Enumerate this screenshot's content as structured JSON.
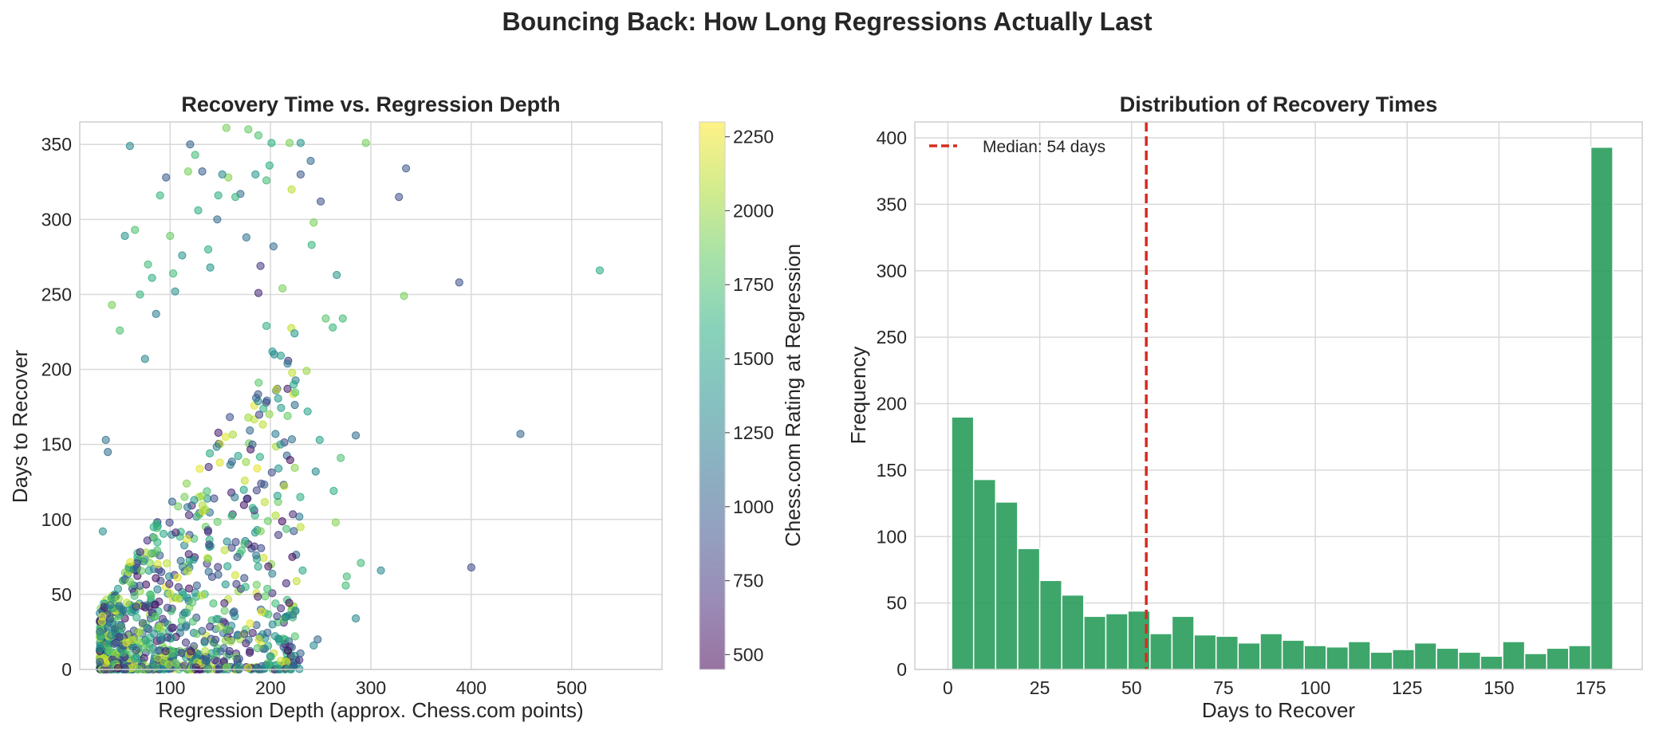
{
  "figure": {
    "title": "Bouncing Back: How Long Regressions Actually Last"
  },
  "chart_data": [
    {
      "type": "scatter",
      "title": "Recovery Time vs. Regression Depth",
      "xlabel": "Regression Depth (approx. Chess.com points)",
      "ylabel": "Days to Recover",
      "xlim": [
        10,
        590
      ],
      "ylim": [
        0,
        365
      ],
      "xticks": [
        100,
        200,
        300,
        400,
        500
      ],
      "yticks": [
        0,
        50,
        100,
        150,
        200,
        250,
        300,
        350
      ],
      "grid": true,
      "colorbar": {
        "label": "Chess.com Rating at Regression",
        "range": [
          450,
          2300
        ],
        "ticks": [
          500,
          750,
          1000,
          1250,
          1500,
          1750,
          2000,
          2250
        ],
        "colormap": "viridis"
      },
      "point_alpha": 0.55,
      "points": [
        [
          528,
          266,
          1550
        ],
        [
          449,
          157,
          1050
        ],
        [
          400,
          68,
          850
        ],
        [
          388,
          258,
          900
        ],
        [
          333,
          249,
          1900
        ],
        [
          335,
          334,
          950
        ],
        [
          328,
          315,
          900
        ],
        [
          310,
          66,
          1300
        ],
        [
          295,
          351,
          1900
        ],
        [
          290,
          71,
          1700
        ],
        [
          285,
          156,
          1100
        ],
        [
          285,
          34,
          1300
        ],
        [
          276,
          62,
          1700
        ],
        [
          275,
          56,
          1700
        ],
        [
          272,
          234,
          1700
        ],
        [
          270,
          141,
          1750
        ],
        [
          265,
          98,
          1950
        ],
        [
          266,
          263,
          1400
        ],
        [
          263,
          119,
          1600
        ],
        [
          262,
          228,
          1650
        ],
        [
          255,
          234,
          1800
        ],
        [
          253,
          367,
          950
        ],
        [
          250,
          312,
          900
        ],
        [
          249,
          153,
          1500
        ],
        [
          247,
          20,
          1050
        ],
        [
          243,
          16,
          1300
        ],
        [
          241,
          283,
          1650
        ],
        [
          243,
          298,
          1900
        ],
        [
          240,
          339,
          1100
        ],
        [
          245,
          132,
          1300
        ],
        [
          236,
          199,
          2000
        ],
        [
          237,
          172,
          1500
        ],
        [
          232,
          66,
          1550
        ],
        [
          230,
          330,
          950
        ],
        [
          230,
          351,
          1400
        ],
        [
          224,
          224,
          1400
        ],
        [
          221,
          320,
          2100
        ],
        [
          219,
          351,
          1900
        ],
        [
          218,
          36,
          1400
        ],
        [
          215,
          35,
          1300
        ],
        [
          212,
          254,
          1900
        ],
        [
          210,
          150,
          1400
        ],
        [
          208,
          134,
          1400
        ],
        [
          205,
          157,
          1200
        ],
        [
          205,
          44,
          1700
        ],
        [
          203,
          282,
          1100
        ],
        [
          202,
          30,
          1300
        ],
        [
          201,
          351,
          1600
        ],
        [
          199,
          336,
          1600
        ],
        [
          196,
          326,
          1700
        ],
        [
          196,
          229,
          1600
        ],
        [
          190,
          269,
          750
        ],
        [
          188,
          251,
          650
        ],
        [
          188,
          356,
          1750
        ],
        [
          185,
          330,
          1400
        ],
        [
          182,
          150,
          950
        ],
        [
          178,
          360,
          1850
        ],
        [
          176,
          288,
          1150
        ],
        [
          172,
          367,
          1250
        ],
        [
          170,
          317,
          1100
        ],
        [
          165,
          315,
          1650
        ],
        [
          158,
          328,
          1950
        ],
        [
          156,
          361,
          1900
        ],
        [
          152,
          330,
          1300
        ],
        [
          148,
          316,
          1600
        ],
        [
          147,
          300,
          1100
        ],
        [
          140,
          268,
          1400
        ],
        [
          138,
          280,
          1600
        ],
        [
          132,
          332,
          1000
        ],
        [
          128,
          306,
          1600
        ],
        [
          125,
          343,
          1700
        ],
        [
          120,
          350,
          1000
        ],
        [
          118,
          332,
          1900
        ],
        [
          112,
          276,
          1400
        ],
        [
          105,
          252,
          1350
        ],
        [
          103,
          264,
          1700
        ],
        [
          100,
          289,
          1850
        ],
        [
          96,
          328,
          950
        ],
        [
          90,
          316,
          1650
        ],
        [
          86,
          237,
          1200
        ],
        [
          82,
          261,
          1600
        ],
        [
          78,
          270,
          1700
        ],
        [
          75,
          207,
          1300
        ],
        [
          70,
          250,
          1650
        ],
        [
          65,
          293,
          1750
        ],
        [
          60,
          349,
          1300
        ],
        [
          55,
          289,
          1400
        ],
        [
          50,
          226,
          1750
        ],
        [
          42,
          243,
          1900
        ],
        [
          38,
          145,
          1100
        ],
        [
          36,
          153,
          1150
        ],
        [
          33,
          92,
          1350
        ],
        [
          31,
          22,
          1500
        ],
        [
          30,
          5,
          950
        ],
        [
          30,
          14,
          1400
        ]
      ],
      "dense_cluster": {
        "x_range": [
          30,
          230
        ],
        "y_range": [
          0,
          240
        ],
        "color_range": [
          500,
          2250
        ],
        "count": 1000
      }
    },
    {
      "type": "bar",
      "title": "Distribution of Recovery Times",
      "xlabel": "Days to Recover",
      "ylabel": "Frequency",
      "xlim": [
        -9,
        189
      ],
      "ylim": [
        0,
        412
      ],
      "xticks": [
        0,
        25,
        50,
        75,
        100,
        125,
        150,
        175
      ],
      "yticks": [
        0,
        50,
        100,
        150,
        200,
        250,
        300,
        350,
        400
      ],
      "grid": true,
      "color": "#2e9e5e",
      "bin_edges": [
        1,
        7,
        13,
        19,
        25,
        31,
        37,
        43,
        49,
        55,
        61,
        67,
        73,
        79,
        85,
        91,
        97,
        103,
        109,
        115,
        121,
        127,
        133,
        139,
        145,
        151,
        157,
        163,
        169,
        175,
        181
      ],
      "values": [
        190,
        143,
        126,
        91,
        67,
        56,
        40,
        42,
        44,
        27,
        40,
        26,
        25,
        20,
        27,
        22,
        18,
        17,
        21,
        13,
        15,
        20,
        16,
        13,
        10,
        21,
        12,
        16,
        18,
        393
      ],
      "median_line": {
        "value": 54,
        "color": "#d62d20",
        "label": "Median: 54 days"
      },
      "legend": {
        "placement": "top-left"
      }
    }
  ]
}
